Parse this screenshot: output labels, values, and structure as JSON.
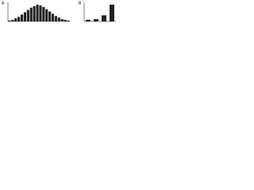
{
  "chart_data": [
    {
      "type": "bar",
      "panel_label": "A",
      "categories": [
        null,
        null,
        null,
        null,
        null,
        null,
        null,
        null,
        null,
        null,
        null,
        null,
        null,
        null,
        null,
        null,
        null,
        null,
        null,
        null
      ],
      "values": [
        1,
        2,
        4,
        6,
        9,
        12,
        15,
        18,
        20,
        22,
        21,
        19,
        16,
        13,
        10,
        7,
        5,
        3,
        2,
        1
      ],
      "color": "#222222",
      "ylim": [
        0,
        25
      ]
    },
    {
      "type": "bar",
      "panel_label": "B",
      "categories": [
        null,
        null,
        null,
        null
      ],
      "values": [
        2,
        3,
        8,
        22
      ],
      "color": "#222222",
      "ylim": [
        0,
        25
      ]
    }
  ]
}
